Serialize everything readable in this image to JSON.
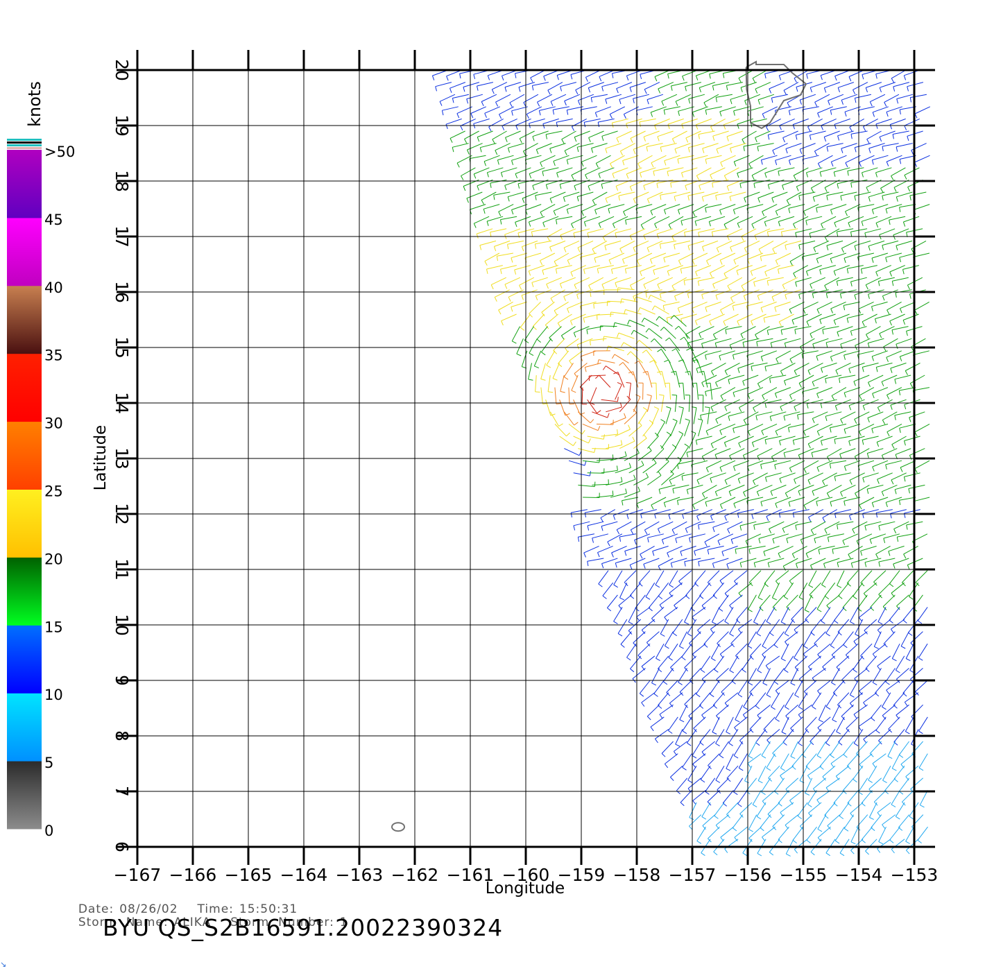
{
  "plot": {
    "x_axis_label": "Longitude",
    "y_axis_label": "Latitude",
    "x_ticks": [
      -167,
      -166,
      -165,
      -164,
      -163,
      -162,
      -161,
      -160,
      -159,
      -158,
      -157,
      -156,
      -155,
      -154,
      -153
    ],
    "y_ticks": [
      6,
      7,
      8,
      9,
      10,
      11,
      12,
      13,
      14,
      15,
      16,
      17,
      18,
      19,
      20
    ],
    "lon_range": [
      -167,
      -153
    ],
    "lat_range": [
      6,
      20
    ]
  },
  "colorbar": {
    "unit": "knots",
    "tick_labels": [
      "0",
      "5",
      "10",
      "15",
      "20",
      "25",
      "30",
      "35",
      "40",
      "45",
      ">50"
    ],
    "bands": [
      {
        "from": 0,
        "to": 5,
        "top": "#2b2b2b",
        "bottom": "#8c8c8c"
      },
      {
        "from": 5,
        "to": 10,
        "top": "#00e5ff",
        "bottom": "#0090ff"
      },
      {
        "from": 10,
        "to": 15,
        "top": "#0070ff",
        "bottom": "#0000ff"
      },
      {
        "from": 15,
        "to": 20,
        "top": "#006000",
        "bottom": "#00ff20"
      },
      {
        "from": 20,
        "to": 25,
        "top": "#fff020",
        "bottom": "#ffc000"
      },
      {
        "from": 25,
        "to": 30,
        "top": "#ff8000",
        "bottom": "#ff4000"
      },
      {
        "from": 30,
        "to": 35,
        "top": "#ff2000",
        "bottom": "#ff0000"
      },
      {
        "from": 35,
        "to": 40,
        "top": "#c88050",
        "bottom": "#4a1010"
      },
      {
        "from": 40,
        "to": 45,
        "top": "#ff00ff",
        "bottom": "#c000c0"
      },
      {
        "from": 45,
        "to": 50,
        "top": "#b000c0",
        "bottom": "#6000c0"
      }
    ],
    "cap_colors": [
      "#e0b0b0",
      "#20c0c0",
      "#000000",
      "#20c0c0"
    ]
  },
  "wind_colors": {
    "calm": "#555555",
    "light": "#20a8f0",
    "moderate": "#0a2fe0",
    "fresh": "#10a010",
    "strong": "#f0dd20",
    "gale": "#f08020",
    "storm": "#d02010",
    "land": "#707070"
  },
  "caption": {
    "date_label": "Date:",
    "date_value": "08/26/02",
    "time_label": "Time:",
    "time_value": "15:50:31",
    "storm_name_label": "Storm  Name:",
    "storm_name_value": "ALIKA",
    "storm_number_label": "Storm  Number:",
    "storm_number_value": "1"
  },
  "product_title": "BYU  QS_S2B16591.20022390324"
}
